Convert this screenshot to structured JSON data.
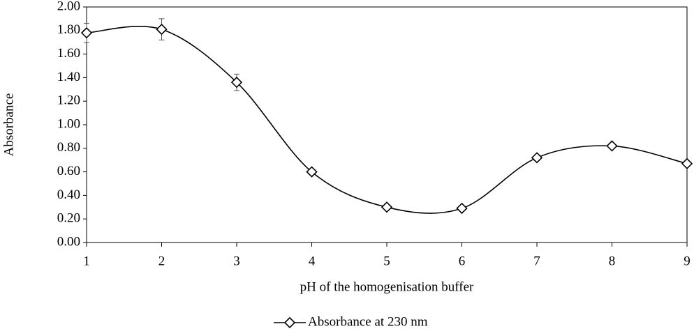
{
  "chart_data": {
    "type": "line",
    "x_label": "pH of the homogenisation buffer",
    "y_label": "Absorbance",
    "x": [
      1,
      2,
      3,
      4,
      5,
      6,
      7,
      8,
      9
    ],
    "series": [
      {
        "name": "Absorbance at 230 nm",
        "color": "#000000",
        "values": [
          1.78,
          1.81,
          1.36,
          0.6,
          0.3,
          0.29,
          0.72,
          0.82,
          0.67
        ],
        "errors": [
          0.08,
          0.09,
          0.07,
          null,
          null,
          null,
          null,
          null,
          null
        ]
      }
    ],
    "xlim": [
      1,
      9
    ],
    "xticks": [
      1,
      2,
      3,
      4,
      5,
      6,
      7,
      8,
      9
    ],
    "ylim": [
      0,
      2
    ],
    "yticks": [
      {
        "value": 0,
        "label": "0.00"
      },
      {
        "value": 0.2,
        "label": "0.20"
      },
      {
        "value": 0.4,
        "label": "0.40"
      },
      {
        "value": 0.6,
        "label": "0.60"
      },
      {
        "value": 0.8,
        "label": "0.80"
      },
      {
        "value": 1,
        "label": "1.00"
      },
      {
        "value": 1.2,
        "label": "1.20"
      },
      {
        "value": 1.4,
        "label": "1.40"
      },
      {
        "value": 1.6,
        "label": "1.60"
      },
      {
        "value": 1.8,
        "label": "1.80"
      },
      {
        "value": 2,
        "label": "2.00"
      }
    ],
    "smooth": true,
    "legend": "bottom"
  }
}
